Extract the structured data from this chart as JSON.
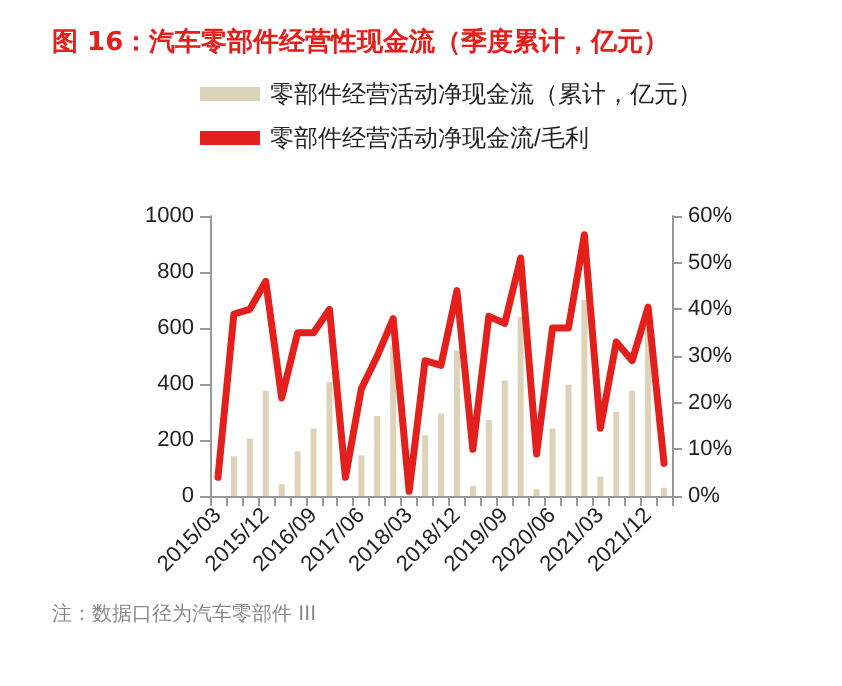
{
  "chart_data": {
    "type": "bar",
    "title": "图 16：汽车零部件经营性现金流（季度累计，亿元）",
    "categories": [
      "2015/03",
      null,
      null,
      "2015/12",
      null,
      null,
      "2016/09",
      null,
      null,
      "2017/06",
      null,
      null,
      "2018/03",
      null,
      null,
      "2018/12",
      null,
      null,
      "2019/09",
      null,
      null,
      "2020/06",
      null,
      null,
      "2021/03",
      null,
      null,
      "2021/12",
      null
    ],
    "series": [
      {
        "name": "零部件经营活动净现金流（累计，亿元）",
        "color": "#ddd3b9",
        "values": [
          null,
          142,
          205,
          376,
          42,
          160,
          241,
          407,
          null,
          145,
          286,
          540,
          null,
          217,
          295,
          520,
          36,
          271,
          413,
          640,
          24,
          241,
          398,
          700,
          69,
          301,
          376,
          600,
          30
        ]
      },
      {
        "name": "零部件经营活动净现金流/毛利",
        "type": "line",
        "axis": "y2",
        "color": "#e3201b",
        "values": [
          4,
          39,
          40,
          46,
          21,
          35,
          35,
          40,
          4,
          23,
          30,
          38,
          1,
          29,
          28,
          44,
          10,
          38.5,
          37,
          51,
          9,
          36,
          36,
          56,
          14.5,
          33,
          29,
          40.5,
          7
        ]
      }
    ],
    "ylim": [
      0,
      1000
    ],
    "yticks": [
      0,
      200,
      400,
      600,
      800,
      1000
    ],
    "y2lim": [
      0,
      60
    ],
    "y2ticks": [
      {
        "value": 0,
        "label": "0%"
      },
      {
        "value": 10,
        "label": "10%"
      },
      {
        "value": 20,
        "label": "20%"
      },
      {
        "value": 30,
        "label": "30%"
      },
      {
        "value": 40,
        "label": "40%"
      },
      {
        "value": 50,
        "label": "50%"
      },
      {
        "value": 60,
        "label": "60%"
      }
    ],
    "legend": "top",
    "marker": "none",
    "line_style": "solid",
    "annotations": [
      "注：数据口径为汽车零部件 III"
    ]
  }
}
